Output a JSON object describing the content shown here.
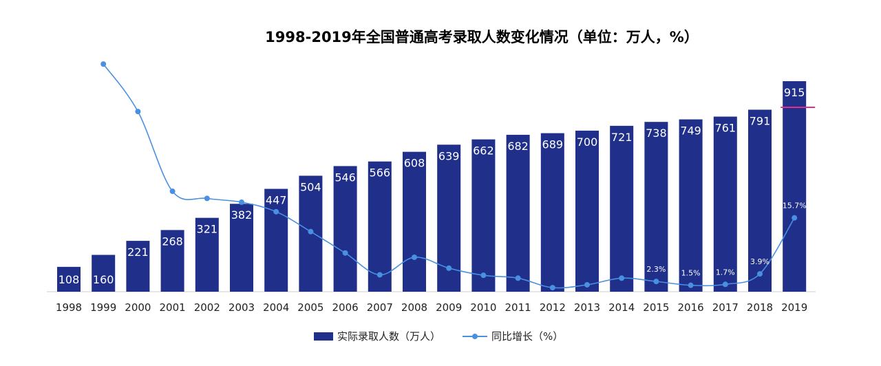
{
  "chart_data": {
    "type": "bar",
    "title": "1998-2019年全国普通高考录取人数变化情况（单位：万人，%）",
    "categories": [
      "1998",
      "1999",
      "2000",
      "2001",
      "2002",
      "2003",
      "2004",
      "2005",
      "2006",
      "2007",
      "2008",
      "2009",
      "2010",
      "2011",
      "2012",
      "2013",
      "2014",
      "2015",
      "2016",
      "2017",
      "2018",
      "2019"
    ],
    "series": [
      {
        "name": "实际录取人数（万人）",
        "type": "bar",
        "color": "#1f2f8a",
        "values": [
          108,
          160,
          221,
          268,
          321,
          382,
          447,
          504,
          546,
          566,
          608,
          639,
          662,
          682,
          689,
          700,
          721,
          738,
          749,
          761,
          791,
          915
        ]
      },
      {
        "name": "同比增长（%）",
        "type": "line",
        "color": "#4a90e2",
        "values": [
          null,
          48.1,
          38.1,
          21.3,
          19.8,
          19.0,
          17.0,
          12.8,
          8.3,
          3.7,
          7.4,
          5.1,
          3.6,
          3.0,
          1.0,
          1.6,
          3.0,
          2.3,
          1.5,
          1.7,
          3.9,
          15.7
        ],
        "labels": [
          "",
          "",
          "",
          "",
          "",
          "",
          "",
          "",
          "",
          "",
          "",
          "",
          "",
          "",
          "",
          "",
          "",
          "2.3%",
          "1.5%",
          "1.7%",
          "3.9%",
          "15.7%"
        ]
      }
    ],
    "ylim": [
      0,
      1000
    ],
    "grid": false,
    "legend_position": "bottom"
  }
}
